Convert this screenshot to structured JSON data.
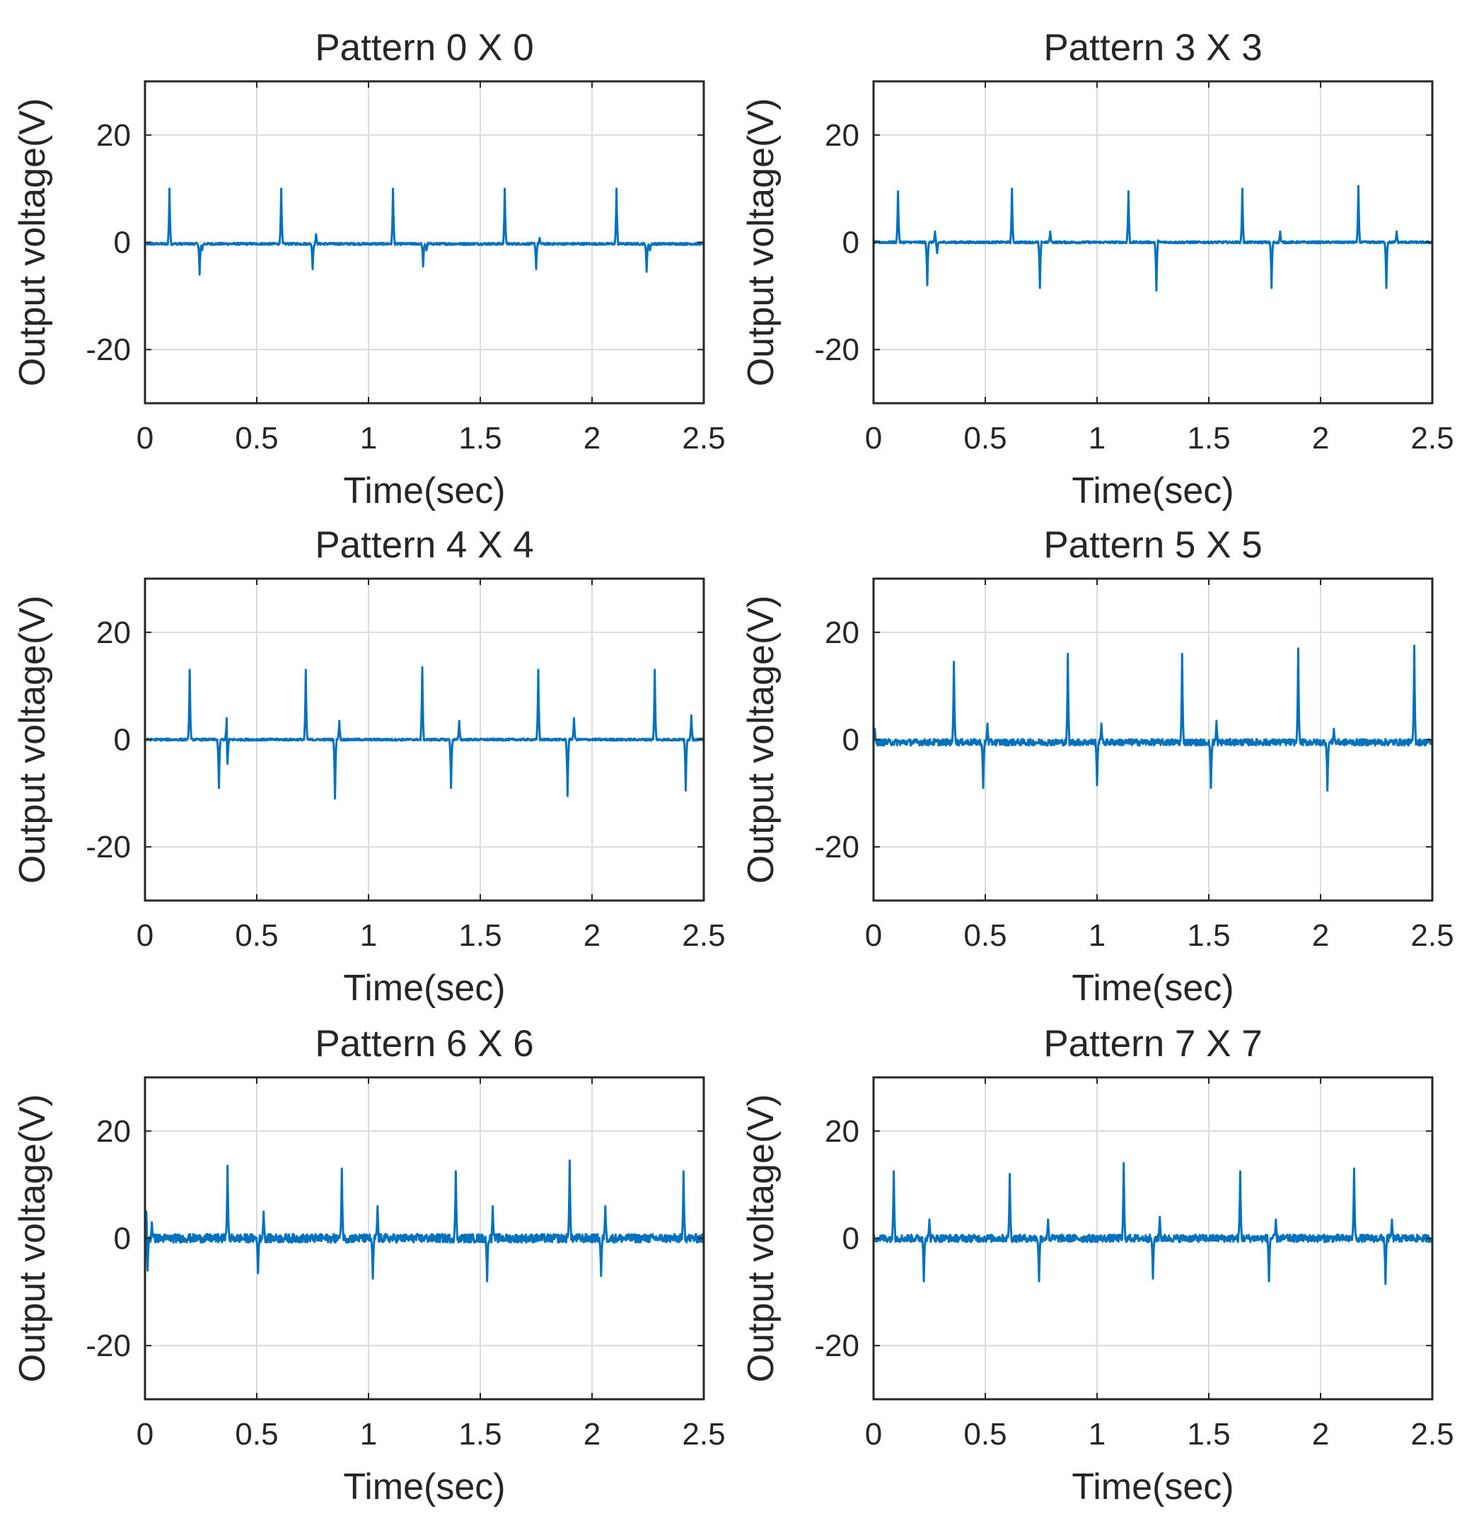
{
  "figure": {
    "series_color": "#0072BD"
  },
  "chart_data": [
    {
      "type": "line",
      "title": "Pattern 0 X 0",
      "xlabel": "Time(sec)",
      "ylabel": "Output voltage(V)",
      "xlim": [
        0,
        2.5
      ],
      "ylim": [
        -30,
        30
      ],
      "xticks": [
        0,
        0.5,
        1,
        1.5,
        2,
        2.5
      ],
      "xtick_labels": [
        "0",
        "0.5",
        "1",
        "1.5",
        "2",
        "2.5"
      ],
      "yticks": [
        20,
        0,
        -20
      ],
      "ytick_labels": [
        "20",
        "0",
        "-20"
      ],
      "grid": true,
      "baseline": -0.3,
      "noise": 0.2,
      "series": [
        {
          "name": "Output voltage",
          "spikes": [
            {
              "t": 0.11,
              "v": 10
            },
            {
              "t": 0.245,
              "v": -6
            },
            {
              "t": 0.255,
              "v": -1.5
            },
            {
              "t": 0.61,
              "v": 10
            },
            {
              "t": 0.75,
              "v": -5
            },
            {
              "t": 0.765,
              "v": 1.5
            },
            {
              "t": 1.11,
              "v": 10
            },
            {
              "t": 1.245,
              "v": -4.5
            },
            {
              "t": 1.26,
              "v": -1.5
            },
            {
              "t": 1.61,
              "v": 10
            },
            {
              "t": 1.75,
              "v": -5
            },
            {
              "t": 1.765,
              "v": 0.8
            },
            {
              "t": 2.11,
              "v": 10
            },
            {
              "t": 2.245,
              "v": -5.5
            },
            {
              "t": 2.26,
              "v": -1.5
            }
          ]
        }
      ]
    },
    {
      "type": "line",
      "title": "Pattern 3 X 3",
      "xlabel": "Time(sec)",
      "ylabel": "Output voltage(V)",
      "xlim": [
        0,
        2.5
      ],
      "ylim": [
        -30,
        30
      ],
      "xticks": [
        0,
        0.5,
        1,
        1.5,
        2,
        2.5
      ],
      "xtick_labels": [
        "0",
        "0.5",
        "1",
        "1.5",
        "2",
        "2.5"
      ],
      "yticks": [
        20,
        0,
        -20
      ],
      "ytick_labels": [
        "20",
        "0",
        "-20"
      ],
      "grid": true,
      "baseline": 0,
      "noise": 0.2,
      "series": [
        {
          "name": "Output voltage",
          "spikes": [
            {
              "t": 0.11,
              "v": 9.5
            },
            {
              "t": 0.24,
              "v": -8
            },
            {
              "t": 0.275,
              "v": 2
            },
            {
              "t": 0.285,
              "v": -2
            },
            {
              "t": 0.62,
              "v": 10
            },
            {
              "t": 0.745,
              "v": -8.5
            },
            {
              "t": 0.79,
              "v": 2
            },
            {
              "t": 1.14,
              "v": 9.5
            },
            {
              "t": 1.265,
              "v": -9
            },
            {
              "t": 1.27,
              "v": 1.5
            },
            {
              "t": 1.65,
              "v": 10
            },
            {
              "t": 1.78,
              "v": -8.5
            },
            {
              "t": 1.82,
              "v": 2
            },
            {
              "t": 2.17,
              "v": 10.5
            },
            {
              "t": 2.295,
              "v": -8.5
            },
            {
              "t": 2.34,
              "v": 2
            }
          ]
        }
      ]
    },
    {
      "type": "line",
      "title": "Pattern 4 X 4",
      "xlabel": "Time(sec)",
      "ylabel": "Output voltage(V)",
      "xlim": [
        0,
        2.5
      ],
      "ylim": [
        -30,
        30
      ],
      "xticks": [
        0,
        0.5,
        1,
        1.5,
        2,
        2.5
      ],
      "xtick_labels": [
        "0",
        "0.5",
        "1",
        "1.5",
        "2",
        "2.5"
      ],
      "yticks": [
        20,
        0,
        -20
      ],
      "ytick_labels": [
        "20",
        "0",
        "-20"
      ],
      "grid": true,
      "baseline": 0,
      "noise": 0.2,
      "series": [
        {
          "name": "Output voltage",
          "spikes": [
            {
              "t": 0.2,
              "v": 13
            },
            {
              "t": 0.33,
              "v": -9
            },
            {
              "t": 0.365,
              "v": 4
            },
            {
              "t": 0.37,
              "v": -4.5
            },
            {
              "t": 0.72,
              "v": 13
            },
            {
              "t": 0.85,
              "v": -11
            },
            {
              "t": 0.87,
              "v": 3.5
            },
            {
              "t": 1.24,
              "v": 13.5
            },
            {
              "t": 1.37,
              "v": -9
            },
            {
              "t": 1.405,
              "v": 3.5
            },
            {
              "t": 1.76,
              "v": 13
            },
            {
              "t": 1.89,
              "v": -10.5
            },
            {
              "t": 1.92,
              "v": 4
            },
            {
              "t": 2.28,
              "v": 13
            },
            {
              "t": 2.42,
              "v": -9.5
            },
            {
              "t": 2.445,
              "v": 4.5
            }
          ]
        }
      ]
    },
    {
      "type": "line",
      "title": "Pattern 5 X 5",
      "xlabel": "Time(sec)",
      "ylabel": "Output voltage(V)",
      "xlim": [
        0,
        2.5
      ],
      "ylim": [
        -30,
        30
      ],
      "xticks": [
        0,
        0.5,
        1,
        1.5,
        2,
        2.5
      ],
      "xtick_labels": [
        "0",
        "0.5",
        "1",
        "1.5",
        "2",
        "2.5"
      ],
      "yticks": [
        20,
        0,
        -20
      ],
      "ytick_labels": [
        "20",
        "0",
        "-20"
      ],
      "grid": true,
      "baseline": -0.5,
      "noise": 0.6,
      "series": [
        {
          "name": "Output voltage",
          "spikes": [
            {
              "t": 0.005,
              "v": 2
            },
            {
              "t": 0.36,
              "v": 14.5
            },
            {
              "t": 0.49,
              "v": -9
            },
            {
              "t": 0.51,
              "v": 3
            },
            {
              "t": 0.87,
              "v": 16
            },
            {
              "t": 1.0,
              "v": -8.5
            },
            {
              "t": 1.02,
              "v": 3
            },
            {
              "t": 1.38,
              "v": 16
            },
            {
              "t": 1.51,
              "v": -9
            },
            {
              "t": 1.535,
              "v": 3.5
            },
            {
              "t": 1.9,
              "v": 17
            },
            {
              "t": 2.03,
              "v": -9.5
            },
            {
              "t": 2.06,
              "v": 2
            },
            {
              "t": 2.42,
              "v": 17.5
            }
          ]
        }
      ]
    },
    {
      "type": "line",
      "title": "Pattern 6 X 6",
      "xlabel": "Time(sec)",
      "ylabel": "Output voltage(V)",
      "xlim": [
        0,
        2.5
      ],
      "ylim": [
        -30,
        30
      ],
      "xticks": [
        0,
        0.5,
        1,
        1.5,
        2,
        2.5
      ],
      "xtick_labels": [
        "0",
        "0.5",
        "1",
        "1.5",
        "2",
        "2.5"
      ],
      "yticks": [
        20,
        0,
        -20
      ],
      "ytick_labels": [
        "20",
        "0",
        "-20"
      ],
      "grid": true,
      "baseline": 0,
      "noise": 0.8,
      "series": [
        {
          "name": "Output voltage",
          "spikes": [
            {
              "t": 0.005,
              "v": 5
            },
            {
              "t": 0.012,
              "v": -6
            },
            {
              "t": 0.03,
              "v": 3
            },
            {
              "t": 0.37,
              "v": 13.5
            },
            {
              "t": 0.505,
              "v": -6.5
            },
            {
              "t": 0.53,
              "v": 5
            },
            {
              "t": 0.88,
              "v": 13
            },
            {
              "t": 1.02,
              "v": -7.5
            },
            {
              "t": 1.04,
              "v": 6
            },
            {
              "t": 1.39,
              "v": 12.5
            },
            {
              "t": 1.53,
              "v": -8
            },
            {
              "t": 1.555,
              "v": 6
            },
            {
              "t": 1.9,
              "v": 14.5
            },
            {
              "t": 2.04,
              "v": -7
            },
            {
              "t": 2.06,
              "v": 6
            },
            {
              "t": 2.41,
              "v": 12.5
            }
          ]
        }
      ]
    },
    {
      "type": "line",
      "title": "Pattern 7 X 7",
      "xlabel": "Time(sec)",
      "ylabel": "Output voltage(V)",
      "xlim": [
        0,
        2.5
      ],
      "ylim": [
        -30,
        30
      ],
      "xticks": [
        0,
        0.5,
        1,
        1.5,
        2,
        2.5
      ],
      "xtick_labels": [
        "0",
        "0.5",
        "1",
        "1.5",
        "2",
        "2.5"
      ],
      "yticks": [
        20,
        0,
        -20
      ],
      "ytick_labels": [
        "20",
        "0",
        "-20"
      ],
      "grid": true,
      "baseline": 0,
      "noise": 0.7,
      "series": [
        {
          "name": "Output voltage",
          "spikes": [
            {
              "t": 0.09,
              "v": 12.5
            },
            {
              "t": 0.225,
              "v": -8
            },
            {
              "t": 0.25,
              "v": 3.5
            },
            {
              "t": 0.61,
              "v": 12
            },
            {
              "t": 0.74,
              "v": -8
            },
            {
              "t": 0.78,
              "v": 3.5
            },
            {
              "t": 1.12,
              "v": 14
            },
            {
              "t": 1.25,
              "v": -7.5
            },
            {
              "t": 1.28,
              "v": 4
            },
            {
              "t": 1.64,
              "v": 12.5
            },
            {
              "t": 1.77,
              "v": -8
            },
            {
              "t": 1.8,
              "v": 3.5
            },
            {
              "t": 2.15,
              "v": 13
            },
            {
              "t": 2.29,
              "v": -8.5
            },
            {
              "t": 2.32,
              "v": 3.5
            }
          ]
        }
      ]
    }
  ]
}
